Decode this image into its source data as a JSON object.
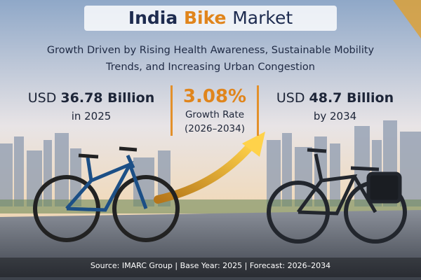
{
  "title": {
    "prefix": "India",
    "highlight": "Bike",
    "suffix": "Market"
  },
  "subtitle": "Growth Driven by Rising Health Awareness, Sustainable Mobility Trends, and Increasing Urban Congestion",
  "stats": {
    "current": {
      "currency": "USD",
      "amount": "36.78 Billion",
      "period": "in 2025"
    },
    "growth": {
      "rate": "3.08%",
      "label": "Growth Rate",
      "period": "(2026–2034)"
    },
    "forecast": {
      "currency": "USD",
      "amount": "48.7 Billion",
      "period": "by 2034"
    }
  },
  "source": "Source: IMARC Group | Base Year: 2025 | Forecast: 2026–2034"
}
